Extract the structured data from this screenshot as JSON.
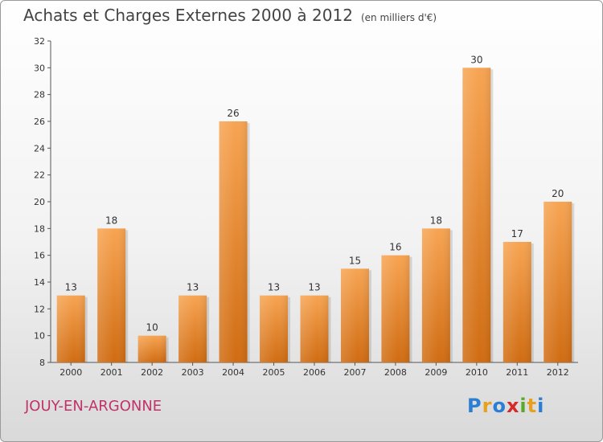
{
  "header": {
    "title": "Achats et Charges Externes 2000 à 2012",
    "subtitle": "(en milliers d'€)"
  },
  "place": "JOUY-EN-ARGONNE",
  "logo": {
    "letters": [
      "P",
      "r",
      "o",
      "x",
      "i",
      "t",
      "i"
    ],
    "colors": [
      "#2a7fd4",
      "#e8a020",
      "#2a7fd4",
      "#d62a2a",
      "#5aaa2a",
      "#e8a020",
      "#2a7fd4"
    ]
  },
  "chart_data": {
    "type": "bar",
    "title": "Achats et Charges Externes 2000 à 2012",
    "categories": [
      "2000",
      "2001",
      "2002",
      "2003",
      "2004",
      "2005",
      "2006",
      "2007",
      "2008",
      "2009",
      "2010",
      "2011",
      "2012"
    ],
    "values": [
      13,
      18,
      10,
      13,
      26,
      13,
      13,
      15,
      16,
      18,
      30,
      17,
      20
    ],
    "ylim": [
      8,
      32
    ],
    "yticks": [
      8,
      10,
      12,
      14,
      16,
      18,
      20,
      22,
      24,
      26,
      28,
      30,
      32
    ],
    "bar_color": "#f0922e",
    "grid": false,
    "legend": "none"
  }
}
